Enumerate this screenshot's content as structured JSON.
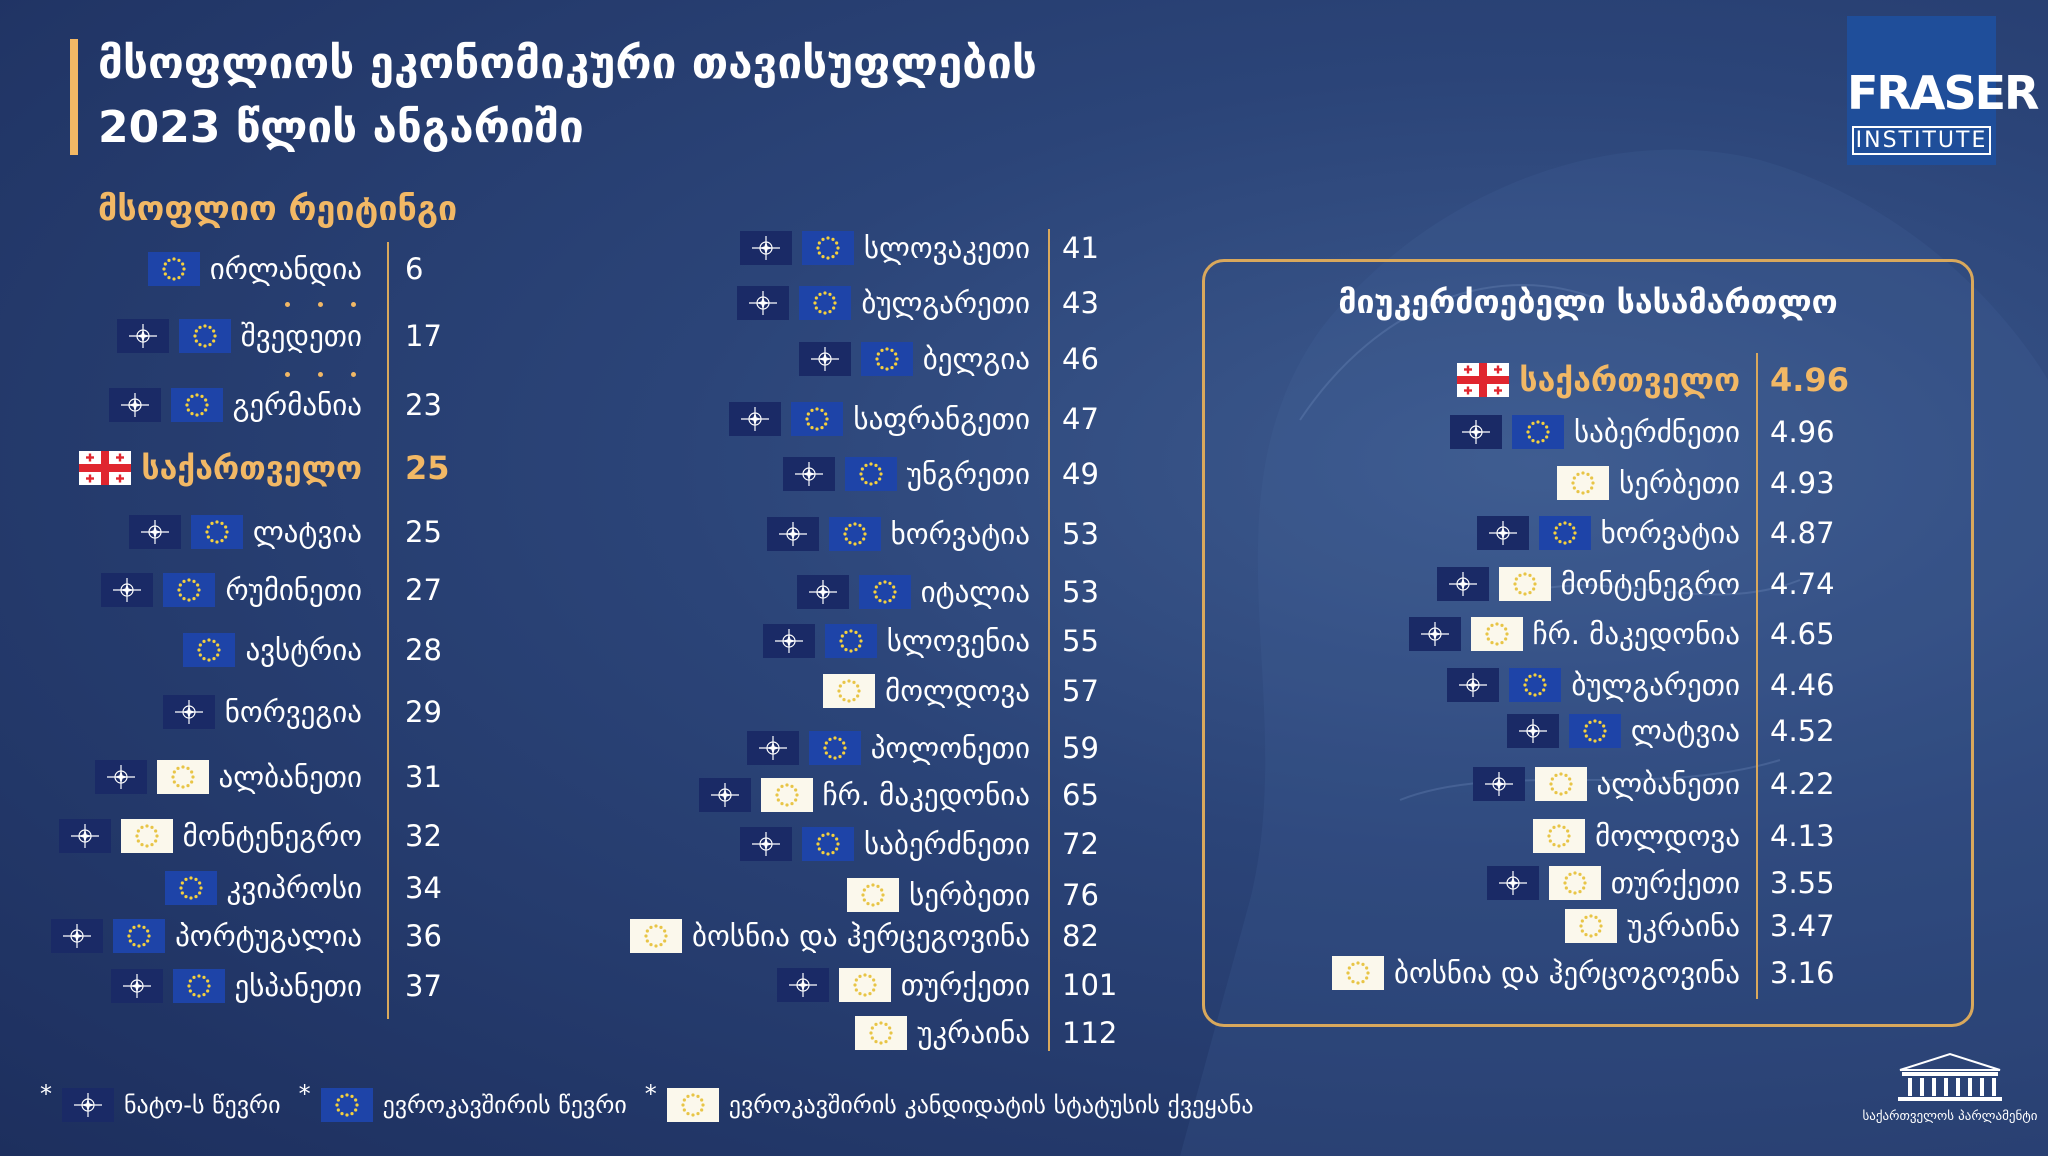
{
  "header": {
    "title": [
      "მსოფლიოს ეკონომიკური თავისუფლების",
      "2023 წლის ანგარიში"
    ],
    "logo": {
      "name": "FRASER",
      "subtitle": "INSTITUTE"
    }
  },
  "ranking": {
    "title": "მსოფლიო რეიტინგი",
    "columns": [
      [
        {
          "name": "ირლანდია",
          "rank": 6,
          "flags": [
            "eu"
          ]
        },
        {
          "name": "შვედეთი",
          "rank": 17,
          "flags": [
            "nato",
            "eu"
          ]
        },
        {
          "name": "გერმანია",
          "rank": 23,
          "flags": [
            "nato",
            "eu"
          ]
        },
        {
          "name": "საქართველო",
          "rank": 25,
          "flags": [
            "ge"
          ],
          "highlight": true
        },
        {
          "name": "ლატვია",
          "rank": 25,
          "flags": [
            "nato",
            "eu"
          ]
        },
        {
          "name": "რუმინეთი",
          "rank": 27,
          "flags": [
            "nato",
            "eu"
          ]
        },
        {
          "name": "ავსტრია",
          "rank": 28,
          "flags": [
            "eu"
          ]
        },
        {
          "name": "ნორვეგია",
          "rank": 29,
          "flags": [
            "nato"
          ]
        },
        {
          "name": "ალბანეთი",
          "rank": 31,
          "flags": [
            "nato",
            "cand"
          ]
        },
        {
          "name": "მონტენეგრო",
          "rank": 32,
          "flags": [
            "nato",
            "cand"
          ]
        },
        {
          "name": "კვიპროსი",
          "rank": 34,
          "flags": [
            "eu"
          ]
        },
        {
          "name": "პორტუგალია",
          "rank": 36,
          "flags": [
            "nato",
            "eu"
          ]
        },
        {
          "name": "ესპანეთი",
          "rank": 37,
          "flags": [
            "nato",
            "eu"
          ]
        }
      ],
      [
        {
          "name": "სლოვაკეთი",
          "rank": 41,
          "flags": [
            "nato",
            "eu"
          ]
        },
        {
          "name": "ბულგარეთი",
          "rank": 43,
          "flags": [
            "nato",
            "eu"
          ]
        },
        {
          "name": "ბელგია",
          "rank": 46,
          "flags": [
            "nato",
            "eu"
          ]
        },
        {
          "name": "საფრანგეთი",
          "rank": 47,
          "flags": [
            "nato",
            "eu"
          ]
        },
        {
          "name": "უნგრეთი",
          "rank": 49,
          "flags": [
            "nato",
            "eu"
          ]
        },
        {
          "name": "ხორვატია",
          "rank": 53,
          "flags": [
            "nato",
            "eu"
          ]
        },
        {
          "name": "იტალია",
          "rank": 53,
          "flags": [
            "nato",
            "eu"
          ]
        },
        {
          "name": "სლოვენია",
          "rank": 55,
          "flags": [
            "nato",
            "eu"
          ]
        },
        {
          "name": "მოლდოვა",
          "rank": 57,
          "flags": [
            "cand"
          ]
        },
        {
          "name": "პოლონეთი",
          "rank": 59,
          "flags": [
            "nato",
            "eu"
          ]
        },
        {
          "name": "ჩრ. მაკედონია",
          "rank": 65,
          "flags": [
            "nato",
            "cand"
          ]
        },
        {
          "name": "საბერძნეთი",
          "rank": 72,
          "flags": [
            "nato",
            "eu"
          ]
        },
        {
          "name": "სერბეთი",
          "rank": 76,
          "flags": [
            "cand"
          ]
        },
        {
          "name": "ბოსნია და ჰერცეგოვინა",
          "rank": 82,
          "flags": [
            "cand"
          ]
        },
        {
          "name": "თურქეთი",
          "rank": 101,
          "flags": [
            "nato",
            "cand"
          ]
        },
        {
          "name": "უკრაინა",
          "rank": 112,
          "flags": [
            "cand"
          ]
        }
      ]
    ]
  },
  "judiciary": {
    "title": "მიუკერძოებელი სასამართლო",
    "items": [
      {
        "name": "საქართველო",
        "score": 4.96,
        "flags": [
          "ge"
        ],
        "highlight": true
      },
      {
        "name": "საბერძნეთი",
        "score": 4.96,
        "flags": [
          "nato",
          "eu"
        ]
      },
      {
        "name": "სერბეთი",
        "score": 4.93,
        "flags": [
          "cand"
        ]
      },
      {
        "name": "ხორვატია",
        "score": 4.87,
        "flags": [
          "nato",
          "eu"
        ]
      },
      {
        "name": "მონტენეგრო",
        "score": 4.74,
        "flags": [
          "nato",
          "cand"
        ]
      },
      {
        "name": "ჩრ. მაკედონია",
        "score": 4.65,
        "flags": [
          "nato",
          "cand"
        ]
      },
      {
        "name": "ბულგარეთი",
        "score": 4.46,
        "flags": [
          "nato",
          "eu"
        ]
      },
      {
        "name": "ლატვია",
        "score": 4.52,
        "flags": [
          "nato",
          "eu"
        ]
      },
      {
        "name": "ალბანეთი",
        "score": 4.22,
        "flags": [
          "nato",
          "cand"
        ]
      },
      {
        "name": "მოლდოვა",
        "score": 4.13,
        "flags": [
          "cand"
        ]
      },
      {
        "name": "თურქეთი",
        "score": 3.55,
        "flags": [
          "nato",
          "cand"
        ]
      },
      {
        "name": "უკრაინა",
        "score": 3.47,
        "flags": [
          "cand"
        ]
      },
      {
        "name": "ბოსნია და ჰერცოგოვინა",
        "score": 3.16,
        "flags": [
          "cand"
        ]
      }
    ]
  },
  "legend": {
    "marker": "*",
    "items": [
      {
        "flag": "nato",
        "label": "ნატო-ს წევრი"
      },
      {
        "flag": "eu",
        "label": "ევროკავშირის წევრი"
      },
      {
        "flag": "cand",
        "label": "ევროკავშირის კანდიდატის სტატუსის ქვეყანა"
      }
    ]
  },
  "footer": {
    "parliament": "საქართველოს პარლამენტი"
  }
}
